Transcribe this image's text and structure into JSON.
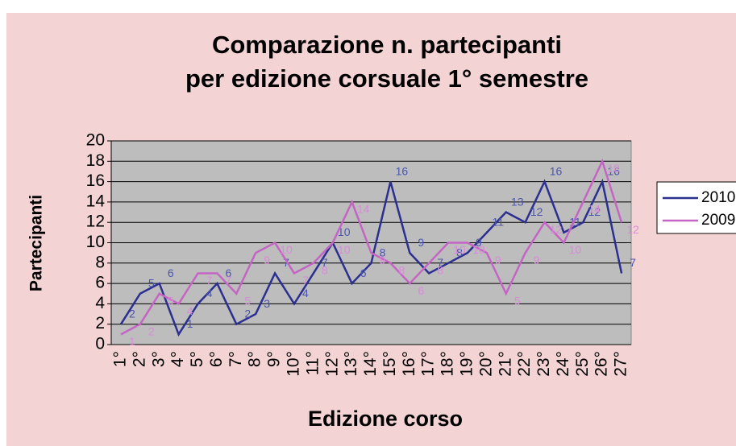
{
  "chart_data": {
    "type": "line",
    "title": [
      "Comparazione n. partecipanti",
      "per edizione corsuale 1° semestre"
    ],
    "x_label": "Edizione corso",
    "y_label": "Partecipanti",
    "categories": [
      "1°",
      "2°",
      "3°",
      "4°",
      "5°",
      "6°",
      "7°",
      "8°",
      "9°",
      "10°",
      "11°",
      "12°",
      "13°",
      "14°",
      "15°",
      "16°",
      "17°",
      "18°",
      "19°",
      "20°",
      "21°",
      "22°",
      "23°",
      "24°",
      "25°",
      "26°",
      "27°"
    ],
    "series": [
      {
        "name": "2010",
        "color": "#2b2f8f",
        "values": [
          2,
          5,
          6,
          1,
          4,
          6,
          2,
          3,
          7,
          4,
          7,
          10,
          6,
          8,
          16,
          9,
          7,
          8,
          9,
          11,
          13,
          12,
          16,
          11,
          12,
          16,
          7
        ]
      },
      {
        "name": "2009",
        "color": "#c465c4",
        "values": [
          1,
          2,
          5,
          4,
          7,
          7,
          5,
          9,
          10,
          7,
          8,
          10,
          14,
          9,
          8,
          6,
          8,
          10,
          10,
          9,
          5,
          9,
          12,
          10,
          14,
          18,
          12
        ]
      }
    ],
    "ylim": [
      0,
      20
    ],
    "yticks": [
      0,
      2,
      4,
      6,
      8,
      10,
      12,
      14,
      16,
      18,
      20
    ],
    "grid": true,
    "legend": "right"
  }
}
